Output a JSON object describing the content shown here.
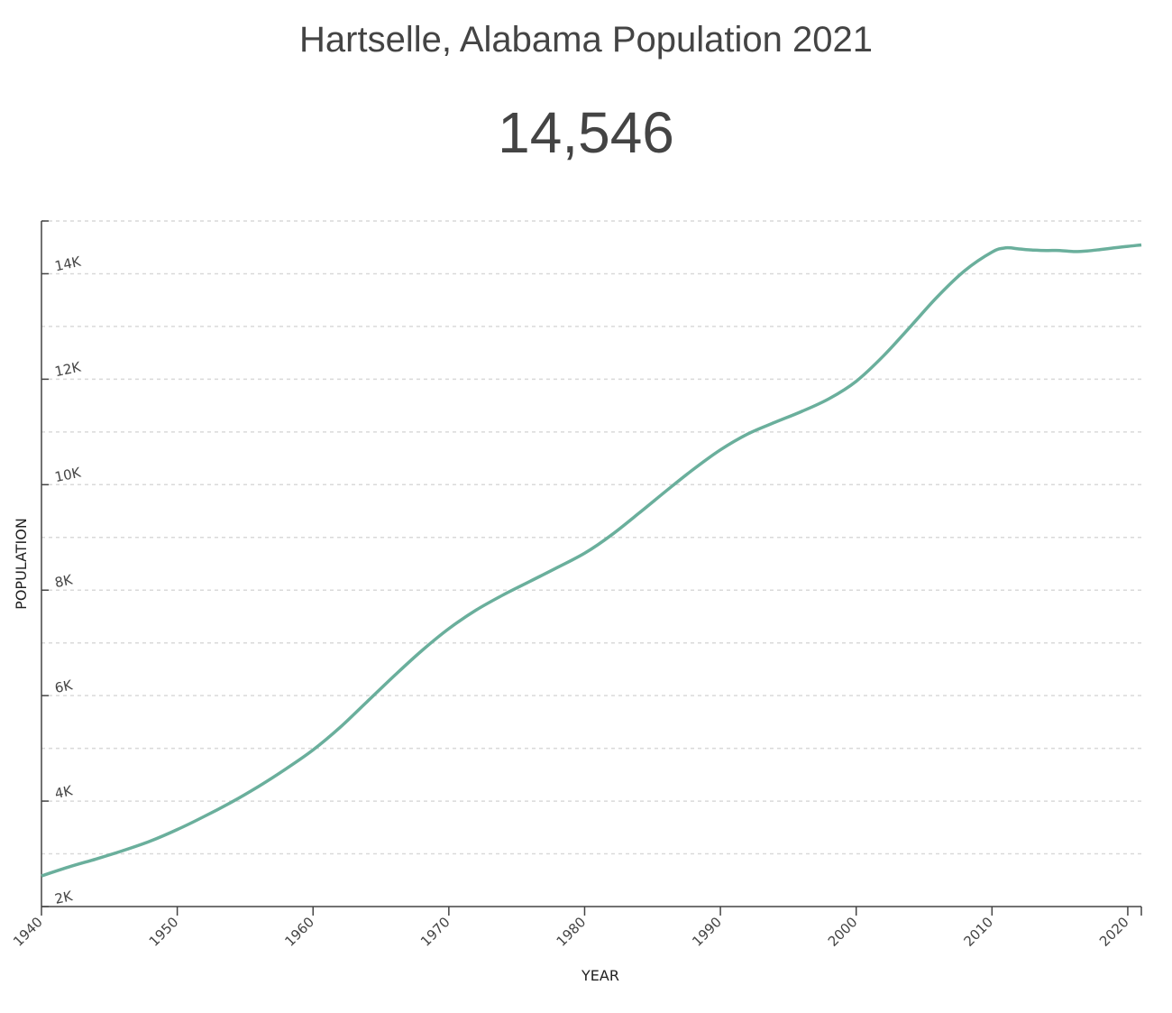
{
  "header": {
    "title": "Hartselle, Alabama Population 2021",
    "population": "14,546"
  },
  "colors": {
    "line": "#6aaf9c",
    "grid": "#d9d9d9",
    "axis": "#444444"
  },
  "chart_data": {
    "type": "line",
    "title": "Hartselle, Alabama Population 2021",
    "xlabel": "YEAR",
    "ylabel": "POPULATION",
    "xlim": [
      1940,
      2021
    ],
    "ylim": [
      2000,
      15000
    ],
    "grid": true,
    "x_ticks": [
      1940,
      1950,
      1960,
      1970,
      1980,
      1990,
      2000,
      2010,
      2020
    ],
    "x_tick_labels": [
      "1940",
      "1950",
      "1960",
      "1970",
      "1980",
      "1990",
      "2000",
      "2010",
      "2020"
    ],
    "y_ticks": [
      2000,
      4000,
      6000,
      8000,
      10000,
      12000,
      14000
    ],
    "y_tick_labels": [
      "2K",
      "4K",
      "6K",
      "8K",
      "10K",
      "12K",
      "14K"
    ],
    "series": [
      {
        "x": [
          1940,
          1942,
          1944,
          1946,
          1948,
          1950,
          1952,
          1954,
          1956,
          1958,
          1960,
          1962,
          1964,
          1966,
          1968,
          1970,
          1972,
          1974,
          1976,
          1978,
          1980,
          1982,
          1984,
          1986,
          1988,
          1990,
          1992,
          1994,
          1996,
          1998,
          2000,
          2002,
          2004,
          2006,
          2008,
          2010,
          2011,
          2012,
          2013,
          2014,
          2015,
          2016,
          2017,
          2018,
          2019,
          2020,
          2021
        ],
        "values": [
          2580,
          2750,
          2900,
          3060,
          3240,
          3460,
          3710,
          3980,
          4280,
          4610,
          4970,
          5400,
          5890,
          6380,
          6850,
          7270,
          7620,
          7910,
          8170,
          8430,
          8700,
          9050,
          9460,
          9880,
          10290,
          10660,
          10960,
          11180,
          11390,
          11630,
          11960,
          12440,
          13000,
          13570,
          14060,
          14410,
          14490,
          14470,
          14450,
          14440,
          14440,
          14420,
          14430,
          14460,
          14490,
          14520,
          14546
        ]
      }
    ]
  }
}
